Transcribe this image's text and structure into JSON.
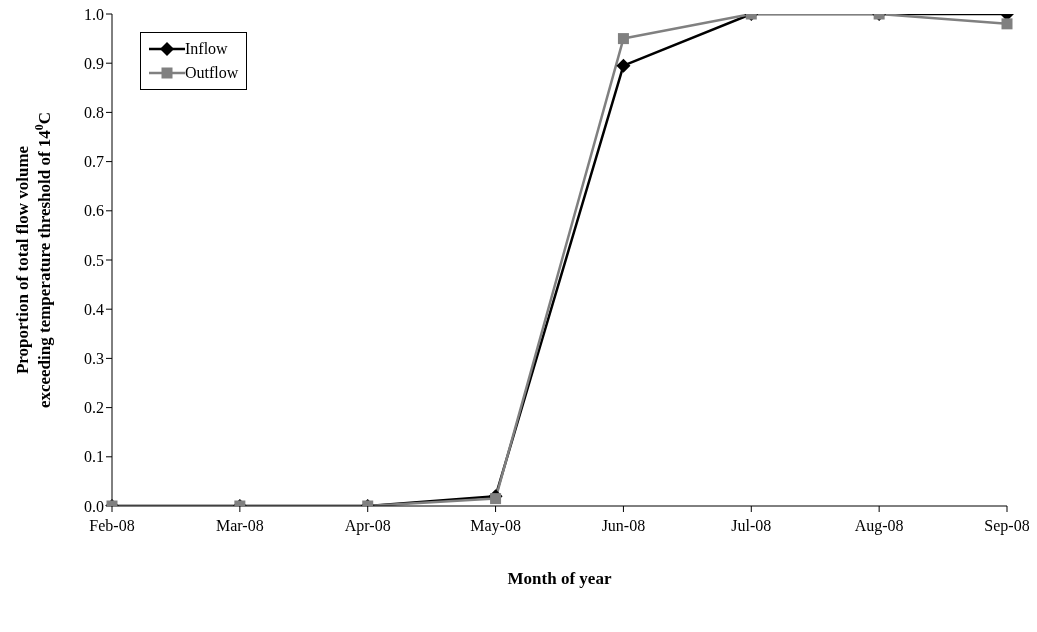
{
  "chart_data": {
    "type": "line",
    "xlabel": "Month of year",
    "ylabel": "Proportion of total flow volume\nexceeding temperature threshold of 14$^{0}$C",
    "categories": [
      "Feb-08",
      "Mar-08",
      "Apr-08",
      "May-08",
      "Jun-08",
      "Jul-08",
      "Aug-08",
      "Sep-08"
    ],
    "series": [
      {
        "name": "Inflow",
        "color": "#000000",
        "marker": "diamond",
        "values": [
          0,
          0,
          0,
          0.02,
          0.895,
          1,
          1,
          1
        ]
      },
      {
        "name": "Outflow",
        "color": "#808080",
        "marker": "square",
        "values": [
          0,
          0,
          0,
          0.015,
          0.95,
          1,
          1,
          0.98
        ]
      }
    ],
    "ylim": [
      0,
      1
    ],
    "yticks": [
      {
        "value": 0,
        "label": "0.0"
      },
      {
        "value": 0.1,
        "label": "0.1"
      },
      {
        "value": 0.2,
        "label": "0.2"
      },
      {
        "value": 0.3,
        "label": "0.3"
      },
      {
        "value": 0.4,
        "label": "0.4"
      },
      {
        "value": 0.5,
        "label": "0.5"
      },
      {
        "value": 0.6,
        "label": "0.6"
      },
      {
        "value": 0.7,
        "label": "0.7"
      },
      {
        "value": 0.8,
        "label": "0.8"
      },
      {
        "value": 0.9,
        "label": "0.9"
      },
      {
        "value": 1,
        "label": "1.0"
      }
    ],
    "grid": false,
    "legend": "top left",
    "line_style": "solid"
  }
}
